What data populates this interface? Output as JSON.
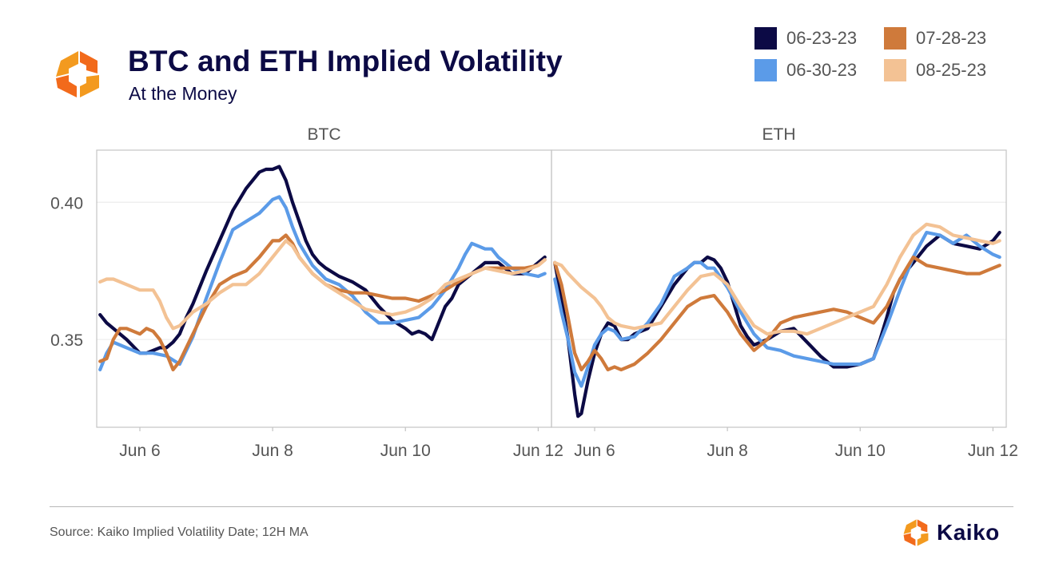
{
  "header": {
    "title": "BTC and ETH Implied Volatility",
    "subtitle": "At the Money"
  },
  "footer": {
    "source": "Source: Kaiko Implied Volatility Date; 12H MA",
    "brand": "Kaiko"
  },
  "colors": {
    "06-23-23": "#0c0a45",
    "06-30-23": "#5b9be8",
    "07-28-23": "#cf7a3b",
    "08-25-23": "#f3c294",
    "logo_primary": "#f39a1f",
    "logo_secondary": "#f26a1b"
  },
  "icons": {
    "logo": "kaiko-logo-icon"
  },
  "chart_data": {
    "type": "line",
    "legend_position": "top-right",
    "legend": [
      "06-23-23",
      "06-30-23",
      "07-28-23",
      "08-25-23"
    ],
    "ylim": [
      0.318,
      0.419
    ],
    "yticks": [
      0.35,
      0.4
    ],
    "ytick_labels": [
      "0.35",
      "0.40"
    ],
    "xlim": [
      5.35,
      12.2
    ],
    "xticks": [
      6,
      8,
      10,
      12
    ],
    "xtick_labels": [
      "Jun 6",
      "Jun 8",
      "Jun 10",
      "Jun 12"
    ],
    "grid": true,
    "panels": [
      {
        "name": "BTC",
        "series": [
          {
            "name": "06-23-23",
            "x": [
              5.4,
              5.5,
              5.6,
              5.8,
              6.0,
              6.1,
              6.2,
              6.3,
              6.4,
              6.5,
              6.6,
              6.7,
              6.8,
              7.0,
              7.2,
              7.4,
              7.6,
              7.8,
              7.9,
              8.0,
              8.1,
              8.2,
              8.3,
              8.4,
              8.5,
              8.6,
              8.7,
              8.8,
              9.0,
              9.2,
              9.4,
              9.6,
              9.8,
              10.0,
              10.1,
              10.2,
              10.3,
              10.4,
              10.5,
              10.6,
              10.7,
              10.8,
              11.0,
              11.2,
              11.4,
              11.6,
              11.8,
              12.0,
              12.1
            ],
            "values": [
              0.359,
              0.356,
              0.354,
              0.35,
              0.345,
              0.345,
              0.346,
              0.347,
              0.347,
              0.349,
              0.352,
              0.358,
              0.363,
              0.375,
              0.386,
              0.397,
              0.405,
              0.411,
              0.412,
              0.412,
              0.413,
              0.408,
              0.4,
              0.393,
              0.386,
              0.381,
              0.378,
              0.376,
              0.373,
              0.371,
              0.368,
              0.362,
              0.357,
              0.354,
              0.352,
              0.353,
              0.352,
              0.35,
              0.356,
              0.362,
              0.365,
              0.37,
              0.374,
              0.378,
              0.378,
              0.374,
              0.374,
              0.378,
              0.38
            ]
          },
          {
            "name": "06-30-23",
            "x": [
              5.4,
              5.5,
              5.6,
              5.8,
              6.0,
              6.2,
              6.4,
              6.6,
              6.8,
              7.0,
              7.2,
              7.4,
              7.6,
              7.8,
              8.0,
              8.1,
              8.2,
              8.3,
              8.4,
              8.6,
              8.8,
              9.0,
              9.2,
              9.4,
              9.6,
              9.8,
              10.0,
              10.2,
              10.4,
              10.6,
              10.8,
              10.9,
              11.0,
              11.1,
              11.2,
              11.3,
              11.4,
              11.6,
              11.8,
              12.0,
              12.1
            ],
            "values": [
              0.339,
              0.345,
              0.349,
              0.347,
              0.345,
              0.345,
              0.344,
              0.341,
              0.351,
              0.365,
              0.378,
              0.39,
              0.393,
              0.396,
              0.401,
              0.402,
              0.398,
              0.391,
              0.385,
              0.377,
              0.372,
              0.37,
              0.366,
              0.36,
              0.356,
              0.356,
              0.357,
              0.358,
              0.362,
              0.368,
              0.376,
              0.381,
              0.385,
              0.384,
              0.383,
              0.383,
              0.38,
              0.376,
              0.374,
              0.373,
              0.374
            ]
          },
          {
            "name": "07-28-23",
            "x": [
              5.4,
              5.5,
              5.6,
              5.7,
              5.8,
              6.0,
              6.1,
              6.2,
              6.3,
              6.4,
              6.5,
              6.6,
              6.8,
              7.0,
              7.2,
              7.4,
              7.6,
              7.8,
              8.0,
              8.1,
              8.2,
              8.3,
              8.4,
              8.6,
              8.8,
              9.0,
              9.2,
              9.4,
              9.6,
              9.8,
              10.0,
              10.2,
              10.4,
              10.6,
              10.8,
              11.0,
              11.2,
              11.4,
              11.6,
              11.8,
              12.0,
              12.1
            ],
            "values": [
              0.342,
              0.343,
              0.35,
              0.354,
              0.354,
              0.352,
              0.354,
              0.353,
              0.35,
              0.345,
              0.339,
              0.342,
              0.352,
              0.362,
              0.37,
              0.373,
              0.375,
              0.38,
              0.386,
              0.386,
              0.388,
              0.385,
              0.38,
              0.374,
              0.37,
              0.368,
              0.367,
              0.367,
              0.366,
              0.365,
              0.365,
              0.364,
              0.366,
              0.368,
              0.371,
              0.374,
              0.376,
              0.376,
              0.376,
              0.376,
              0.377,
              0.379
            ]
          },
          {
            "name": "08-25-23",
            "x": [
              5.4,
              5.5,
              5.6,
              5.8,
              6.0,
              6.2,
              6.3,
              6.4,
              6.5,
              6.6,
              6.8,
              7.0,
              7.2,
              7.4,
              7.6,
              7.8,
              8.0,
              8.1,
              8.2,
              8.3,
              8.4,
              8.6,
              8.8,
              9.0,
              9.2,
              9.4,
              9.6,
              9.8,
              10.0,
              10.2,
              10.4,
              10.6,
              10.8,
              11.0,
              11.2,
              11.4,
              11.6,
              11.8,
              12.0,
              12.1
            ],
            "values": [
              0.371,
              0.372,
              0.372,
              0.37,
              0.368,
              0.368,
              0.364,
              0.358,
              0.354,
              0.355,
              0.36,
              0.363,
              0.367,
              0.37,
              0.37,
              0.374,
              0.38,
              0.383,
              0.386,
              0.384,
              0.38,
              0.374,
              0.37,
              0.367,
              0.364,
              0.361,
              0.36,
              0.359,
              0.36,
              0.362,
              0.365,
              0.37,
              0.372,
              0.374,
              0.376,
              0.375,
              0.374,
              0.375,
              0.377,
              0.379
            ]
          }
        ]
      },
      {
        "name": "ETH",
        "series": [
          {
            "name": "06-23-23",
            "x": [
              5.4,
              5.5,
              5.6,
              5.7,
              5.75,
              5.8,
              5.9,
              6.0,
              6.1,
              6.2,
              6.3,
              6.4,
              6.5,
              6.6,
              6.8,
              7.0,
              7.2,
              7.4,
              7.5,
              7.6,
              7.7,
              7.8,
              7.9,
              8.0,
              8.1,
              8.2,
              8.3,
              8.4,
              8.6,
              8.8,
              9.0,
              9.2,
              9.4,
              9.6,
              9.8,
              10.0,
              10.2,
              10.3,
              10.4,
              10.5,
              10.6,
              10.8,
              11.0,
              11.2,
              11.4,
              11.6,
              11.8,
              12.0,
              12.1
            ],
            "values": [
              0.378,
              0.365,
              0.35,
              0.33,
              0.322,
              0.323,
              0.335,
              0.345,
              0.352,
              0.356,
              0.355,
              0.35,
              0.35,
              0.352,
              0.354,
              0.362,
              0.37,
              0.376,
              0.378,
              0.378,
              0.38,
              0.379,
              0.376,
              0.371,
              0.363,
              0.355,
              0.351,
              0.348,
              0.35,
              0.353,
              0.354,
              0.349,
              0.344,
              0.34,
              0.34,
              0.341,
              0.343,
              0.35,
              0.358,
              0.367,
              0.372,
              0.378,
              0.384,
              0.388,
              0.385,
              0.384,
              0.383,
              0.386,
              0.389
            ]
          },
          {
            "name": "06-30-23",
            "x": [
              5.4,
              5.5,
              5.6,
              5.7,
              5.8,
              5.9,
              6.0,
              6.1,
              6.2,
              6.3,
              6.4,
              6.6,
              6.8,
              7.0,
              7.2,
              7.4,
              7.5,
              7.6,
              7.7,
              7.8,
              8.0,
              8.2,
              8.4,
              8.6,
              8.8,
              9.0,
              9.2,
              9.4,
              9.6,
              9.8,
              10.0,
              10.2,
              10.4,
              10.6,
              10.8,
              11.0,
              11.2,
              11.4,
              11.6,
              11.8,
              12.0,
              12.1
            ],
            "values": [
              0.372,
              0.36,
              0.35,
              0.338,
              0.333,
              0.34,
              0.348,
              0.352,
              0.354,
              0.353,
              0.35,
              0.351,
              0.356,
              0.363,
              0.373,
              0.376,
              0.378,
              0.378,
              0.376,
              0.376,
              0.369,
              0.36,
              0.352,
              0.347,
              0.346,
              0.344,
              0.343,
              0.342,
              0.341,
              0.341,
              0.341,
              0.343,
              0.355,
              0.368,
              0.38,
              0.389,
              0.388,
              0.385,
              0.388,
              0.384,
              0.381,
              0.38
            ]
          },
          {
            "name": "07-28-23",
            "x": [
              5.4,
              5.5,
              5.6,
              5.7,
              5.8,
              5.9,
              6.0,
              6.1,
              6.2,
              6.3,
              6.4,
              6.6,
              6.8,
              7.0,
              7.2,
              7.4,
              7.6,
              7.8,
              8.0,
              8.2,
              8.4,
              8.6,
              8.8,
              9.0,
              9.2,
              9.4,
              9.6,
              9.8,
              10.0,
              10.2,
              10.4,
              10.6,
              10.8,
              11.0,
              11.2,
              11.4,
              11.6,
              11.8,
              12.0,
              12.1
            ],
            "values": [
              0.378,
              0.37,
              0.358,
              0.345,
              0.339,
              0.342,
              0.346,
              0.343,
              0.339,
              0.34,
              0.339,
              0.341,
              0.345,
              0.35,
              0.356,
              0.362,
              0.365,
              0.366,
              0.36,
              0.352,
              0.346,
              0.35,
              0.356,
              0.358,
              0.359,
              0.36,
              0.361,
              0.36,
              0.358,
              0.356,
              0.362,
              0.372,
              0.38,
              0.377,
              0.376,
              0.375,
              0.374,
              0.374,
              0.376,
              0.377
            ]
          },
          {
            "name": "08-25-23",
            "x": [
              5.4,
              5.5,
              5.6,
              5.8,
              6.0,
              6.1,
              6.2,
              6.3,
              6.4,
              6.6,
              6.8,
              7.0,
              7.2,
              7.4,
              7.6,
              7.8,
              8.0,
              8.2,
              8.4,
              8.6,
              8.8,
              9.0,
              9.2,
              9.4,
              9.6,
              9.8,
              10.0,
              10.2,
              10.4,
              10.6,
              10.8,
              11.0,
              11.2,
              11.4,
              11.6,
              11.8,
              12.0,
              12.1
            ],
            "values": [
              0.378,
              0.377,
              0.374,
              0.369,
              0.365,
              0.362,
              0.358,
              0.356,
              0.355,
              0.354,
              0.355,
              0.356,
              0.362,
              0.368,
              0.373,
              0.374,
              0.37,
              0.362,
              0.355,
              0.352,
              0.353,
              0.353,
              0.352,
              0.354,
              0.356,
              0.358,
              0.36,
              0.362,
              0.37,
              0.38,
              0.388,
              0.392,
              0.391,
              0.388,
              0.387,
              0.386,
              0.385,
              0.386
            ]
          }
        ]
      }
    ]
  }
}
